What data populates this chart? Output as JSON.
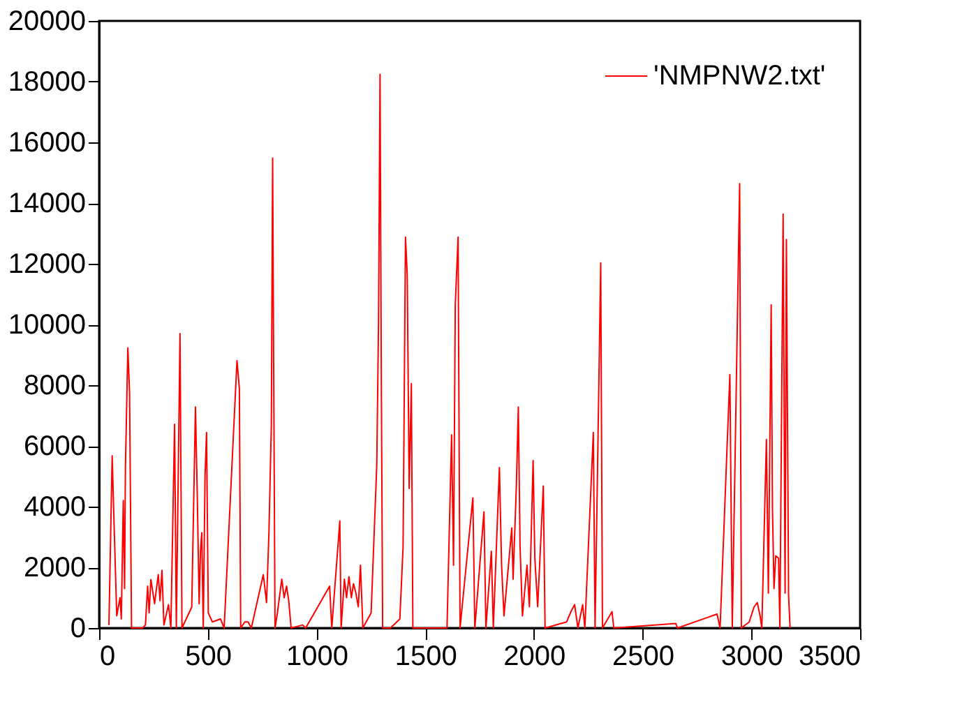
{
  "chart_data": {
    "type": "line",
    "x": [
      45,
      60,
      68,
      81,
      96,
      102,
      111,
      117,
      121,
      132,
      140,
      149,
      200,
      213,
      223,
      230,
      238,
      255,
      272,
      280,
      289,
      298,
      319,
      330,
      347,
      355,
      372,
      381,
      426,
      443,
      451,
      460,
      466,
      472,
      479,
      487,
      494,
      502,
      521,
      558,
      575,
      634,
      645,
      651,
      670,
      685,
      700,
      755,
      770,
      781,
      792,
      798,
      802,
      809,
      820,
      840,
      851,
      862,
      872,
      883,
      936,
      950,
      1060,
      1070,
      1107,
      1113,
      1128,
      1138,
      1149,
      1160,
      1170,
      1181,
      1192,
      1202,
      1213,
      1251,
      1277,
      1285,
      1292,
      1298,
      1304,
      1340,
      1383,
      1398,
      1409,
      1417,
      1426,
      1436,
      1443,
      1600,
      1621,
      1630,
      1638,
      1651,
      1660,
      1719,
      1728,
      1770,
      1779,
      1804,
      1813,
      1841,
      1851,
      1862,
      1898,
      1904,
      1919,
      1928,
      1936,
      1947,
      1968,
      1979,
      1996,
      2004,
      2017,
      2043,
      2051,
      2150,
      2170,
      2187,
      2202,
      2224,
      2234,
      2273,
      2281,
      2307,
      2315,
      2359,
      2367,
      2652,
      2660,
      2842,
      2856,
      2901,
      2912,
      2946,
      2954,
      2990,
      3012,
      3027,
      3040,
      3048,
      3069,
      3078,
      3091,
      3097,
      3104,
      3112,
      3125,
      3131,
      3146,
      3155,
      3161,
      3171,
      3178
    ],
    "series": [
      {
        "name": "'NMPNW2.txt'",
        "color": "#ff0000",
        "values": [
          100,
          5670,
          3600,
          400,
          1000,
          300,
          4200,
          1300,
          5300,
          9230,
          7740,
          0,
          0,
          100,
          1380,
          500,
          1600,
          800,
          1760,
          900,
          1900,
          100,
          770,
          0,
          6710,
          0,
          9700,
          0,
          690,
          7280,
          4520,
          800,
          2530,
          3140,
          0,
          4980,
          6440,
          500,
          200,
          300,
          0,
          8810,
          7890,
          0,
          200,
          200,
          0,
          1760,
          840,
          3140,
          6670,
          15480,
          9580,
          0,
          500,
          1610,
          1000,
          1380,
          900,
          0,
          100,
          0,
          1380,
          0,
          3530,
          0,
          1610,
          1000,
          1690,
          1000,
          1460,
          1150,
          700,
          2070,
          0,
          500,
          5370,
          10040,
          18240,
          8050,
          0,
          0,
          300,
          2680,
          12880,
          11650,
          4600,
          8050,
          0,
          0,
          6360,
          2070,
          10650,
          12880,
          0,
          4290,
          0,
          3830,
          0,
          2530,
          0,
          5290,
          2070,
          400,
          3300,
          1610,
          4680,
          7280,
          2680,
          400,
          2070,
          700,
          5520,
          2300,
          700,
          4680,
          0,
          200,
          540,
          770,
          0,
          770,
          0,
          6440,
          0,
          12030,
          0,
          540,
          0,
          150,
          0,
          460,
          0,
          8350,
          0,
          14640,
          0,
          200,
          690,
          840,
          400,
          0,
          6210,
          1150,
          10650,
          3900,
          1300,
          2380,
          2300,
          0,
          13640,
          1150,
          12800,
          1070,
          0
        ]
      }
    ],
    "xlim": [
      0,
      3500
    ],
    "xticks": [
      0,
      500,
      1000,
      1500,
      2000,
      2500,
      3000,
      3500
    ],
    "ylim": [
      0,
      20000
    ],
    "yticks": [
      0,
      2000,
      4000,
      6000,
      8000,
      10000,
      12000,
      14000,
      16000,
      18000,
      20000
    ],
    "grid": false,
    "legend": "top right",
    "marker": "none",
    "line_style": "solid"
  }
}
